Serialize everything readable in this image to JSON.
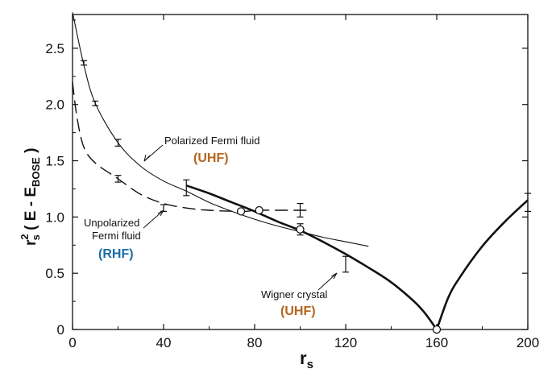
{
  "chart_data": {
    "type": "line",
    "title": "",
    "xlabel": "r_s",
    "ylabel": "r_s^2 ( E - E_BOSE )",
    "xlim": [
      0,
      200
    ],
    "ylim": [
      0,
      2.8
    ],
    "xticks": [
      0,
      40,
      80,
      120,
      160,
      200
    ],
    "yticks": [
      0,
      0.5,
      1.0,
      1.5,
      2.0,
      2.5
    ],
    "xtick_labels": [
      "0",
      "40",
      "80",
      "120",
      "160",
      "200"
    ],
    "ytick_labels": [
      "0",
      "0.5",
      "1.0",
      "1.5",
      "2.0",
      "2.5"
    ],
    "grid": false,
    "legend": "none",
    "series": [
      {
        "name": "Polarized Fermi fluid",
        "tag": "(UHF)",
        "tag_color": "#b5651d",
        "style": "thin-solid",
        "x": [
          0,
          5,
          10,
          20,
          30,
          40,
          50,
          60,
          70,
          80,
          90,
          100,
          110,
          120,
          130
        ],
        "y": [
          2.82,
          2.35,
          2.01,
          1.66,
          1.45,
          1.32,
          1.23,
          1.13,
          1.05,
          0.98,
          0.92,
          0.87,
          0.82,
          0.78,
          0.74
        ]
      },
      {
        "name": "Unpolarized Fermi fluid",
        "tag": "(RHF)",
        "tag_color": "#1a6ea8",
        "style": "dashed",
        "x": [
          0,
          2,
          5,
          10,
          20,
          30,
          40,
          50,
          60,
          74,
          82,
          90,
          100,
          104
        ],
        "y": [
          2.2,
          1.88,
          1.62,
          1.48,
          1.34,
          1.2,
          1.12,
          1.08,
          1.06,
          1.05,
          1.06,
          1.06,
          1.06,
          1.06
        ]
      },
      {
        "name": "Wigner crystal",
        "tag": "(UHF)",
        "tag_color": "#b5651d",
        "style": "thick-solid",
        "segments": [
          {
            "x": [
              50,
              60,
              70,
              80,
              90,
              100,
              110,
              120,
              130,
              140,
              150,
              155,
              160
            ],
            "y": [
              1.28,
              1.21,
              1.13,
              1.05,
              0.96,
              0.88,
              0.78,
              0.67,
              0.55,
              0.42,
              0.25,
              0.14,
              0.0
            ]
          },
          {
            "x": [
              160,
              165,
              170,
              180,
              190,
              200
            ],
            "y": [
              0.0,
              0.28,
              0.46,
              0.74,
              0.96,
              1.15
            ]
          }
        ]
      }
    ],
    "error_bars": [
      {
        "x": 5,
        "y": 2.37,
        "err": 0.02
      },
      {
        "x": 10,
        "y": 2.01,
        "err": 0.02
      },
      {
        "x": 20,
        "y": 1.66,
        "err": 0.03
      },
      {
        "x": 20,
        "y": 1.34,
        "err": 0.03
      },
      {
        "x": 40,
        "y": 1.08,
        "err": 0.03
      },
      {
        "x": 50,
        "y": 1.26,
        "err": 0.07
      },
      {
        "x": 100,
        "y": 1.06,
        "err": 0.06
      },
      {
        "x": 100,
        "y": 0.89,
        "err": 0.05
      },
      {
        "x": 120,
        "y": 0.58,
        "err": 0.07
      },
      {
        "x": 200,
        "y": 1.13,
        "err": 0.08
      }
    ],
    "open_markers": [
      {
        "x": 74,
        "y": 1.05
      },
      {
        "x": 82,
        "y": 1.06
      },
      {
        "x": 100,
        "y": 0.89
      },
      {
        "x": 160,
        "y": 0.0
      }
    ],
    "annotations": [
      {
        "text": "Polarized Fermi fluid",
        "tag": "(UHF)",
        "tag_color": "#b5651d"
      },
      {
        "text_lines": [
          "Unpolarized",
          "Fermi fluid"
        ],
        "tag": "(RHF)",
        "tag_color": "#1a6ea8"
      },
      {
        "text": "Wigner crystal",
        "tag": "(UHF)",
        "tag_color": "#b5651d"
      }
    ]
  }
}
